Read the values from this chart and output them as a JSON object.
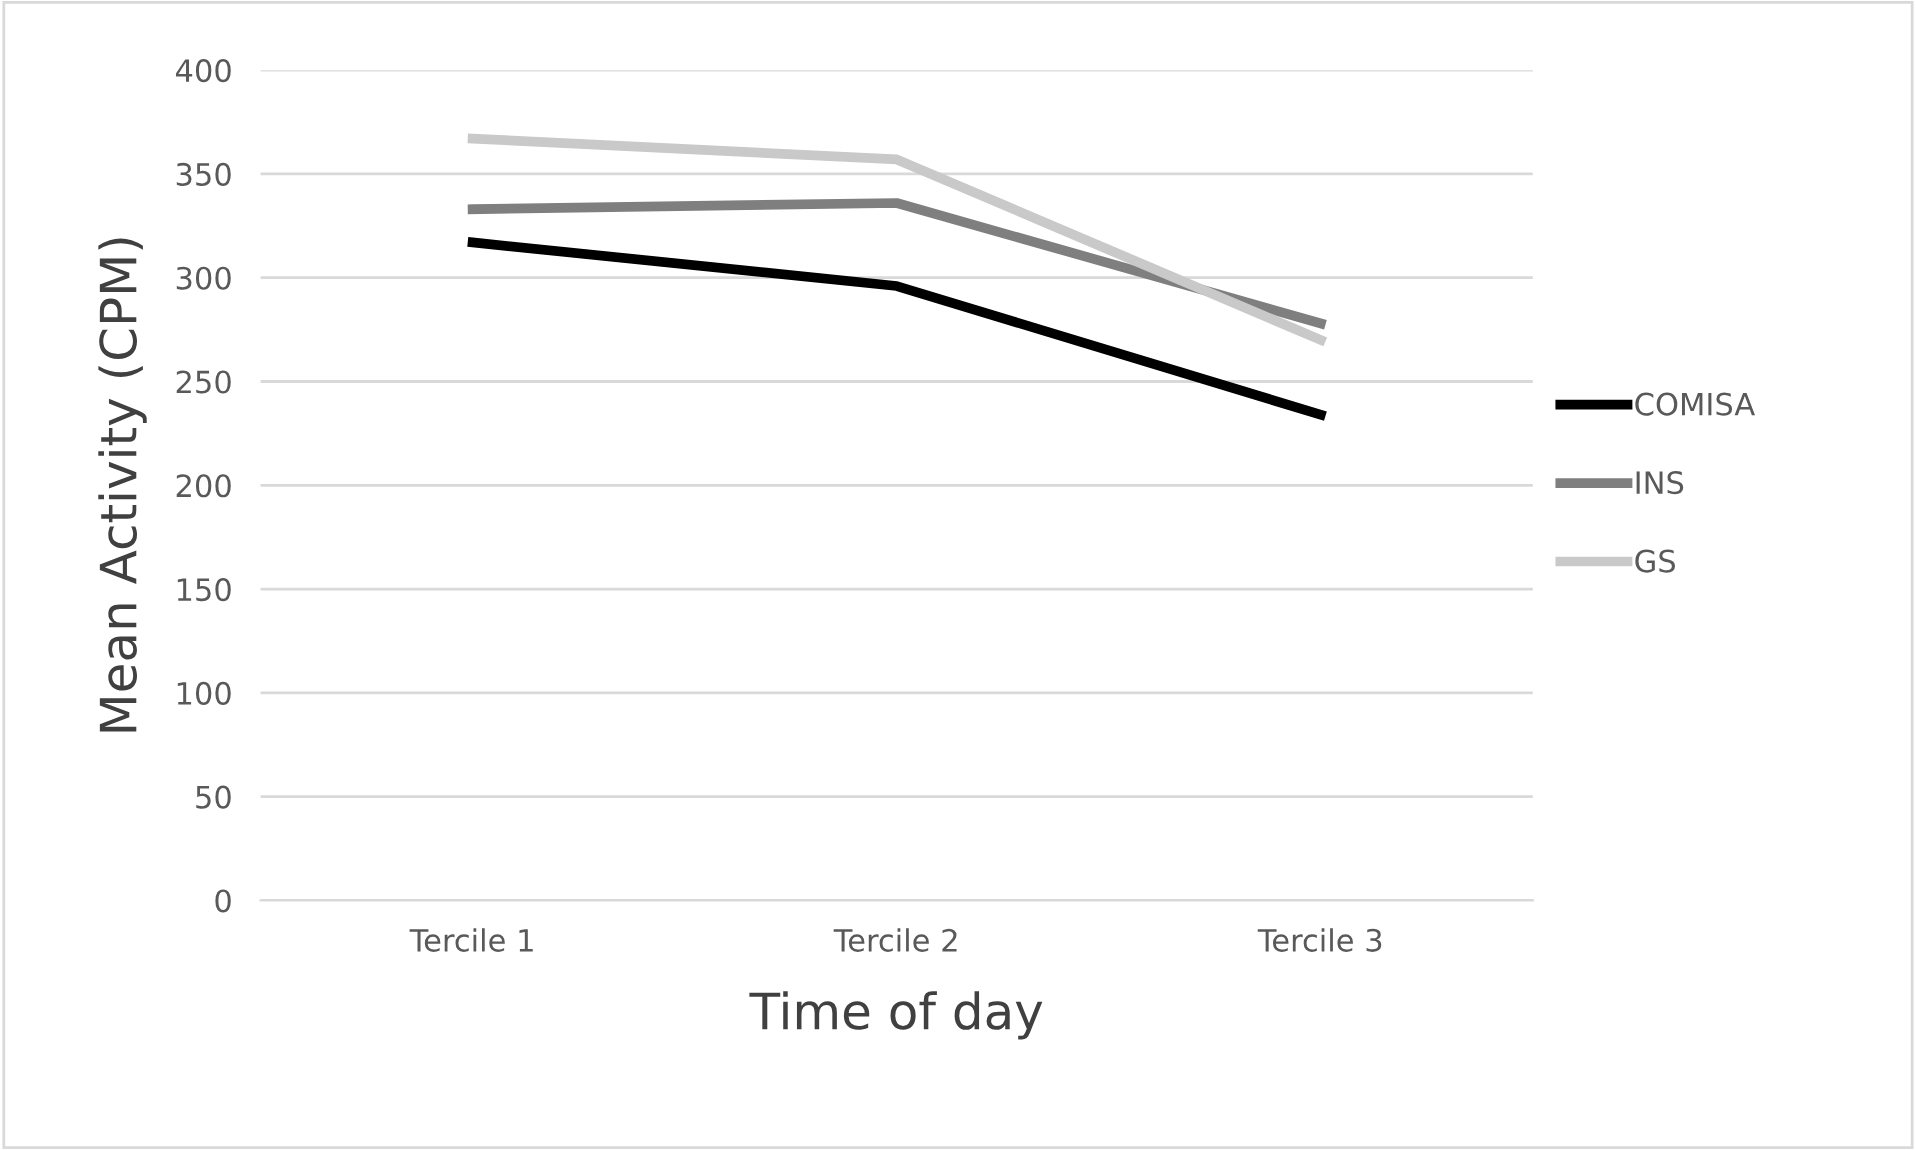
{
  "chart_data": {
    "type": "line",
    "xlabel": "Time of day",
    "ylabel": "Mean Activity (CPM)",
    "categories": [
      "Tercile 1",
      "Tercile 2",
      "Tercile 3"
    ],
    "series": [
      {
        "name": "COMISA",
        "color": "#000000",
        "values": [
          317,
          296,
          234
        ]
      },
      {
        "name": "INS",
        "color": "#7f7f7f",
        "values": [
          333,
          336,
          278
        ]
      },
      {
        "name": "GS",
        "color": "#c9c9c9",
        "values": [
          367,
          357,
          270
        ]
      }
    ],
    "ylim": [
      0,
      400
    ],
    "yticks": [
      0,
      50,
      100,
      150,
      200,
      250,
      300,
      350,
      400
    ],
    "grid": "y",
    "legend": "right",
    "marker": "none",
    "line_style": "solid"
  }
}
